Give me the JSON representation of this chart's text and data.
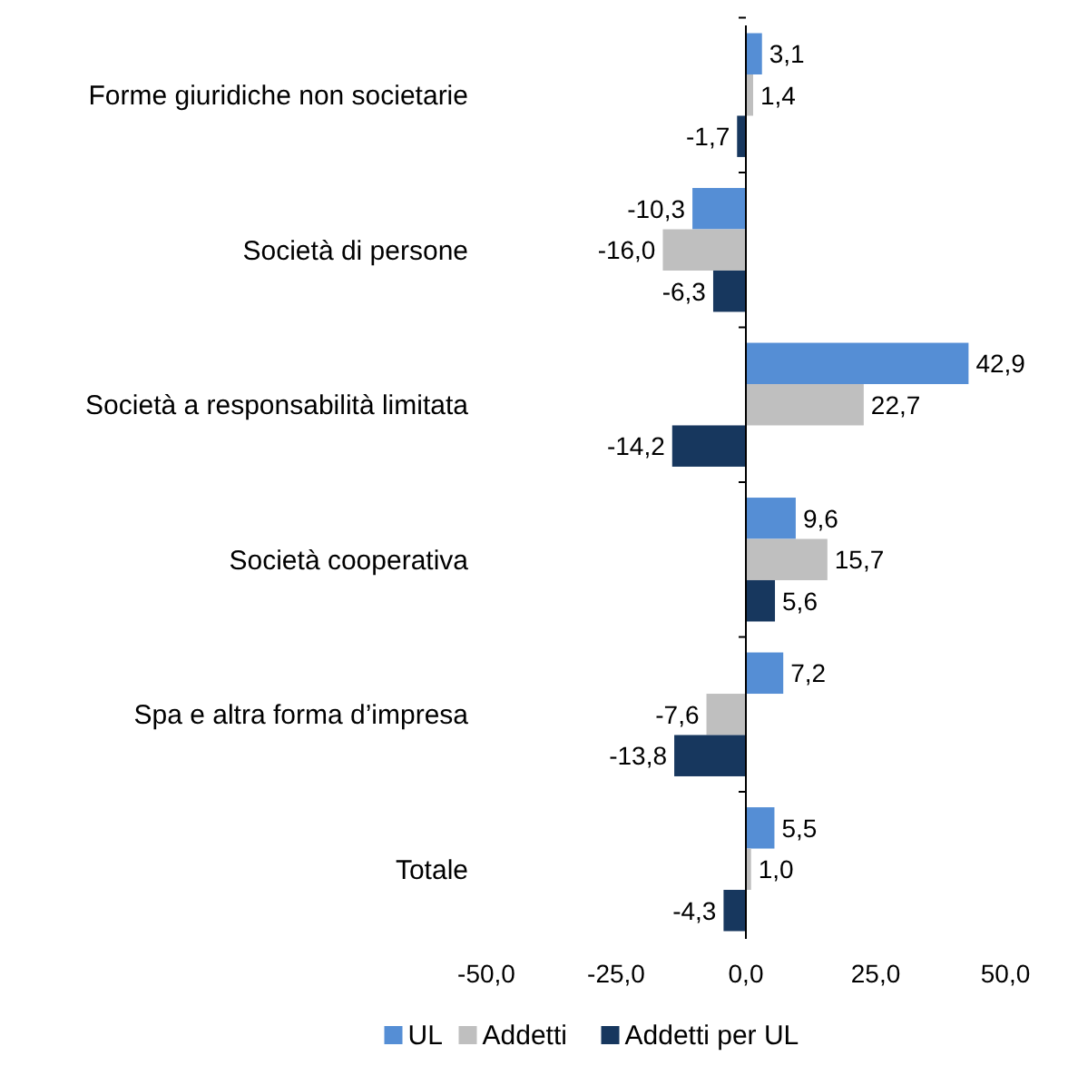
{
  "chart_data": {
    "type": "bar",
    "orientation": "horizontal",
    "categories": [
      "Forme giuridiche non societarie",
      "Società di persone",
      "Società a responsabilità limitata",
      "Società cooperativa",
      "Spa e altra forma d’impresa",
      "Totale"
    ],
    "series": [
      {
        "name": "UL",
        "color": "#558ed5",
        "values": [
          3.1,
          -10.3,
          42.9,
          9.6,
          7.2,
          5.5
        ],
        "value_labels": [
          "3,1",
          "-10,3",
          "42,9",
          "9,6",
          "7,2",
          "5,5"
        ]
      },
      {
        "name": "Addetti",
        "color": "#bfbfbf",
        "values": [
          1.4,
          -16.0,
          22.7,
          15.7,
          -7.6,
          1.0
        ],
        "value_labels": [
          "1,4",
          "-16,0",
          "22,7",
          "15,7",
          "-7,6",
          "1,0"
        ]
      },
      {
        "name": "Addetti per UL",
        "color": "#17375e",
        "values": [
          -1.7,
          -6.3,
          -14.2,
          5.6,
          -13.8,
          -4.3
        ],
        "value_labels": [
          "-1,7",
          "-6,3",
          "-14,2",
          "5,6",
          "-13,8",
          "-4,3"
        ]
      }
    ],
    "xlim": [
      -50,
      50
    ],
    "xticks": [
      {
        "value": -50,
        "label": "-50,0"
      },
      {
        "value": -25,
        "label": "-25,0"
      },
      {
        "value": 0,
        "label": "0,0"
      },
      {
        "value": 25,
        "label": "25,0"
      },
      {
        "value": 50,
        "label": "50,0"
      }
    ],
    "legend": "bottom"
  }
}
